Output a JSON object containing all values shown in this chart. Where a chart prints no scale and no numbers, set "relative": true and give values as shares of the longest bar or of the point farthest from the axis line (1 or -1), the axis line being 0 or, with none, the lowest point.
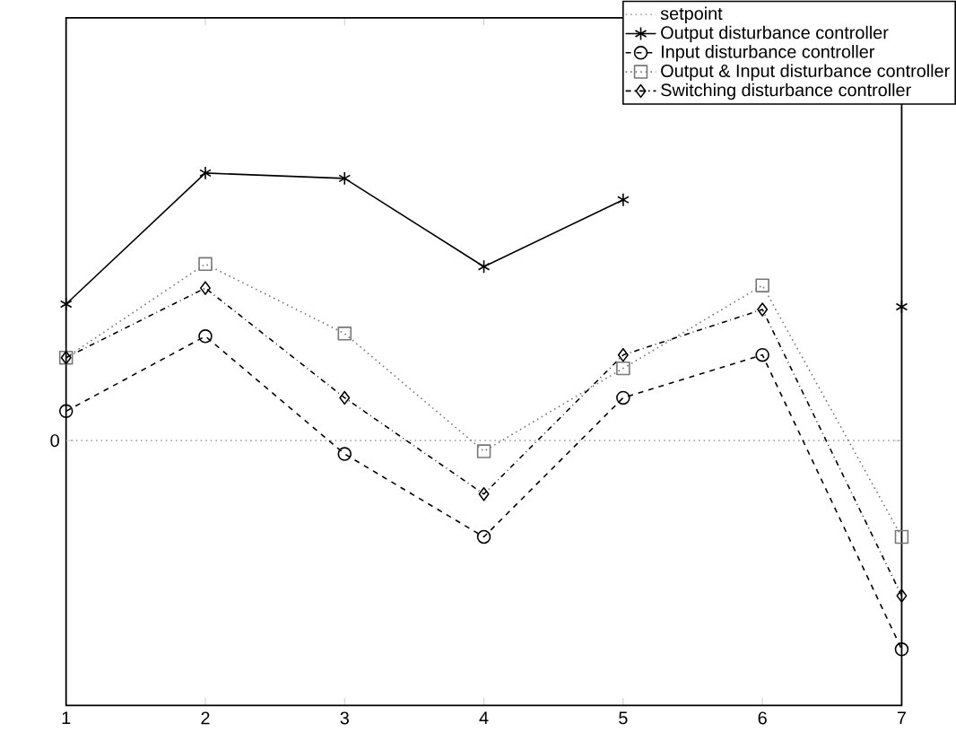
{
  "chart_data": {
    "type": "line",
    "relative": true,
    "x": [
      1,
      2,
      3,
      4,
      5,
      6,
      7
    ],
    "xlim": [
      1,
      7
    ],
    "xticks": [
      1,
      2,
      3,
      4,
      5,
      6,
      7
    ],
    "tick_labels": "x",
    "legend": "top right",
    "annotations": [
      "0"
    ],
    "series": [
      {
        "name": "setpoint",
        "color": "#aaaaaa",
        "line_style": "dotted",
        "marker": "none",
        "values": [
          0,
          0,
          0,
          0,
          0,
          0,
          0
        ]
      },
      {
        "name": "Output disturbance controller",
        "color": "#000000",
        "line_style": "solid",
        "marker": "cross",
        "values": [
          0.51,
          1.0,
          0.98,
          0.65,
          0.9,
          null,
          0.5
        ]
      },
      {
        "name": "Input disturbance controller",
        "color": "#000000",
        "line_style": "dashed",
        "marker": "circle",
        "values": [
          0.11,
          0.39,
          -0.05,
          -0.36,
          0.16,
          0.32,
          -0.78
        ]
      },
      {
        "name": "Output & Input disturbance controller",
        "color": "#777777",
        "line_style": "dotted",
        "marker": "square",
        "values": [
          0.31,
          0.66,
          0.4,
          -0.04,
          0.27,
          0.58,
          -0.36
        ]
      },
      {
        "name": "Switching disturbance controller",
        "color": "#000000",
        "line_style": "dashdot",
        "marker": "diamond",
        "values": [
          0.31,
          0.57,
          0.16,
          -0.2,
          0.32,
          0.49,
          -0.58
        ]
      }
    ]
  }
}
